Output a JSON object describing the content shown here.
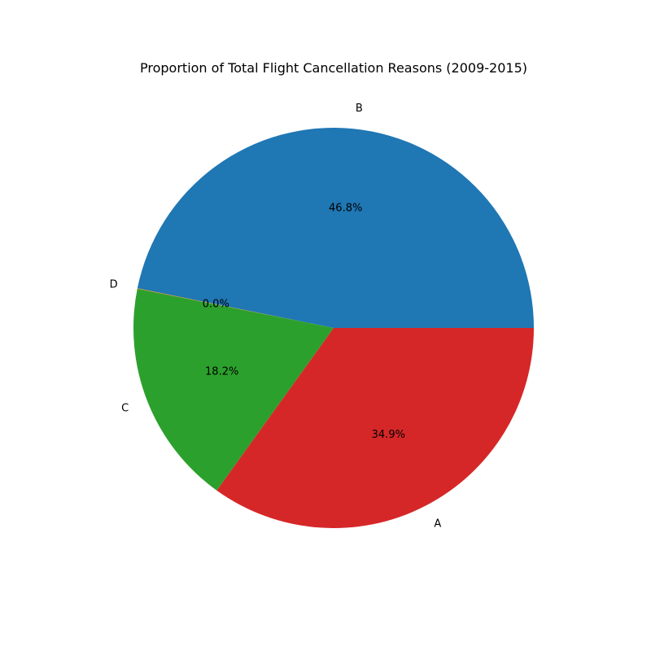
{
  "chart_data": {
    "type": "pie",
    "title": "Proportion of Total Flight Cancellation Reasons (2009-2015)",
    "start_angle_deg": 0,
    "direction": "counterclockwise",
    "slices": [
      {
        "label": "B",
        "value": 46.8,
        "pct_label": "46.8%",
        "color": "#1f77b4"
      },
      {
        "label": "D",
        "value": 0.04,
        "pct_label": "0.0%",
        "color": "#ff7f0e"
      },
      {
        "label": "C",
        "value": 18.2,
        "pct_label": "18.2%",
        "color": "#2ca02c"
      },
      {
        "label": "A",
        "value": 34.9,
        "pct_label": "34.9%",
        "color": "#d62728"
      }
    ]
  }
}
